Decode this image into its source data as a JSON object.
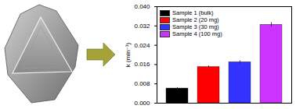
{
  "chart_data": {
    "type": "bar",
    "y_label": "k (min⁻¹)",
    "categories": [
      "Sample 1 (bulk)",
      "Sample 2 (20 mg)",
      "Sample 3 (30 mg)",
      "Sample 4 (100 mg)"
    ],
    "values": [
      0.0061,
      0.015,
      0.017,
      0.0325
    ],
    "errors": [
      0.0004,
      0.0005,
      0.0006,
      0.0009
    ],
    "colors": [
      "#000000",
      "#ff0000",
      "#3333ff",
      "#cc33ff"
    ],
    "ylim": [
      0,
      0.04
    ],
    "yticks": [
      {
        "value": 0,
        "label": "0.000"
      },
      {
        "value": 0.008,
        "label": "0.008"
      },
      {
        "value": 0.016,
        "label": "0.016"
      },
      {
        "value": 0.024,
        "label": "0.024"
      },
      {
        "value": 0.032,
        "label": "0.032"
      },
      {
        "value": 0.04,
        "label": "0.040"
      }
    ],
    "legend": "top-left",
    "tick_labels": "y",
    "grid": false
  }
}
